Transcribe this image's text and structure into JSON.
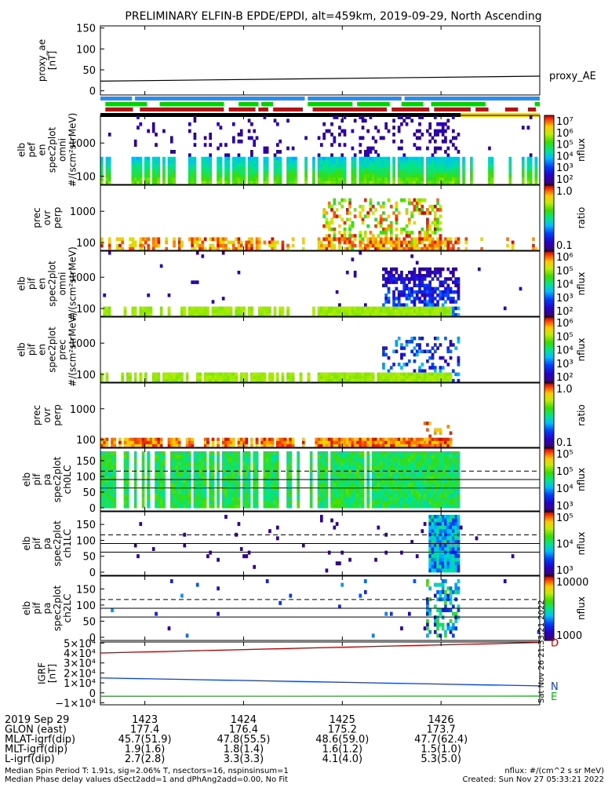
{
  "title": "PRELIMINARY ELFIN-B EPDE/EPDI, alt=459km, 2019-09-29, North Ascending",
  "colors": {
    "trace_black": "#000000",
    "bar_blue": "#1e90ff",
    "bar_green": "#00d400",
    "bar_red": "#e00000",
    "bar_yellow": "#ffd700",
    "igrf_red": "#c00000",
    "igrf_blue": "#0040ff",
    "igrf_green": "#00c000"
  },
  "chart_data": [
    {
      "type": "line",
      "name": "proxy_ae",
      "ylabel": "proxy_ae [nT]",
      "yticks": [
        "150",
        "100",
        "50",
        "0"
      ],
      "ylim": [
        -10,
        155
      ],
      "legend": "proxy_AE",
      "x": [
        1422.55,
        1427.0
      ],
      "values": [
        23,
        35
      ]
    },
    {
      "type": "heatmap",
      "name": "elb-pef-en-spec2plot-omni",
      "ylabel": "elb pef en spec2plot omni #/(scm²strMeV)",
      "yticks": [
        "1000",
        "100"
      ],
      "colorbar": {
        "label": "nflux",
        "ticks": [
          "10⁷",
          "10⁶",
          "10⁵",
          "10⁴",
          "10³",
          "10²"
        ]
      }
    },
    {
      "type": "heatmap",
      "name": "prec-ovr-perp-e",
      "ylabel": "prec ovr perp",
      "yticks": [
        "1000",
        "100"
      ],
      "colorbar": {
        "label": "ratio",
        "ticks": [
          "1.0",
          "0.1"
        ]
      }
    },
    {
      "type": "heatmap",
      "name": "elb-pif-en-spec2plot-omni",
      "ylabel": "elb pif en spec2plot omni #/(scm²strMeV)",
      "yticks": [
        "1000",
        "100"
      ],
      "colorbar": {
        "label": "nflux",
        "ticks": [
          "10⁶",
          "10⁵",
          "10⁴",
          "10³",
          "10²"
        ]
      }
    },
    {
      "type": "heatmap",
      "name": "elb-pif-en-spec2plot-prec",
      "ylabel": "elb pif en spec2plot prec #/(scm²strMeV)",
      "yticks": [
        "1000",
        "100"
      ],
      "colorbar": {
        "label": "nflux",
        "ticks": [
          "10⁶",
          "10⁵",
          "10⁴",
          "10³",
          "10²"
        ]
      }
    },
    {
      "type": "heatmap",
      "name": "prec-ovr-perp-i",
      "ylabel": "prec ovr perp",
      "yticks": [
        "1000",
        "100"
      ],
      "colorbar": {
        "label": "ratio",
        "ticks": [
          "1.0",
          "0.1"
        ]
      }
    },
    {
      "type": "heatmap",
      "name": "elb-pif-pa-ch0LC",
      "ylabel": "elb pif pa spec2plot ch0LC",
      "yticks": [
        "150",
        "100",
        "50",
        "0"
      ],
      "ylim": [
        0,
        180
      ],
      "colorbar": {
        "label": "nflux",
        "ticks": [
          "10⁵",
          "10⁵",
          "10⁴",
          "10³"
        ]
      }
    },
    {
      "type": "heatmap",
      "name": "elb-pif-pa-ch1LC",
      "ylabel": "elb pif pa spec2plot ch1LC",
      "yticks": [
        "150",
        "100",
        "50",
        "0"
      ],
      "ylim": [
        0,
        180
      ],
      "colorbar": {
        "label": "nflux",
        "ticks": [
          "10⁵",
          "10⁴",
          "10³"
        ]
      }
    },
    {
      "type": "heatmap",
      "name": "elb-pif-pa-ch2LC",
      "ylabel": "elb pif pa spec2plot ch2LC",
      "yticks": [
        "150",
        "100",
        "50",
        "0"
      ],
      "ylim": [
        0,
        180
      ],
      "colorbar": {
        "label": "nflux",
        "ticks": [
          "10000",
          "1000"
        ]
      }
    },
    {
      "type": "line",
      "name": "IGRF",
      "ylabel": "IGRF [nT]",
      "yticks": [
        "5×10⁴",
        "4×10⁴",
        "3×10⁴",
        "2×10⁴",
        "1×10⁴",
        "0",
        "−1×10⁴"
      ],
      "ylim": [
        -12000,
        51000
      ],
      "x": [
        1422.55,
        1427.0
      ],
      "series": [
        {
          "name": "D",
          "values": [
            40000,
            50500
          ]
        },
        {
          "name": "N",
          "values": [
            15000,
            7000
          ]
        },
        {
          "name": "E",
          "values": [
            -3500,
            -3300
          ]
        }
      ]
    }
  ],
  "side_stamp": "Sat Nov 26 21:33:21 2022",
  "footer_rows": [
    {
      "label": "2019 Sep 29",
      "values": [
        "1423",
        "1424",
        "1425",
        "1426"
      ]
    },
    {
      "label": "GLON (east)",
      "values": [
        "177.4",
        "176.4",
        "175.2",
        "173.7"
      ]
    },
    {
      "label": "MLAT-igrf(dip)",
      "values": [
        "45.7(51.9)",
        "47.8(55.5)",
        "48.6(59.0)",
        "47.7(62.4)"
      ]
    },
    {
      "label": "MLT-igrf(dip)",
      "values": [
        "1.9(1.6)",
        "1.8(1.4)",
        "1.6(1.2)",
        "1.5(1.0)"
      ]
    },
    {
      "label": "L-igrf(dip)",
      "values": [
        "2.7(2.8)",
        "3.3(3.3)",
        "4.1(4.0)",
        "5.3(5.0)"
      ]
    }
  ],
  "footer_notes": [
    "Median Spin Period T: 1.91s, sig=2.06% T, nsectors=16, nspinsinsum=1",
    "Median Phase delay values dSect2add=1 and dPhAng2add=0.00, No Fit"
  ],
  "footer_right": [
    "nflux: #/(cm^2 s sr MeV)",
    "Created: Sun Nov 27 05:33:21 2022"
  ]
}
